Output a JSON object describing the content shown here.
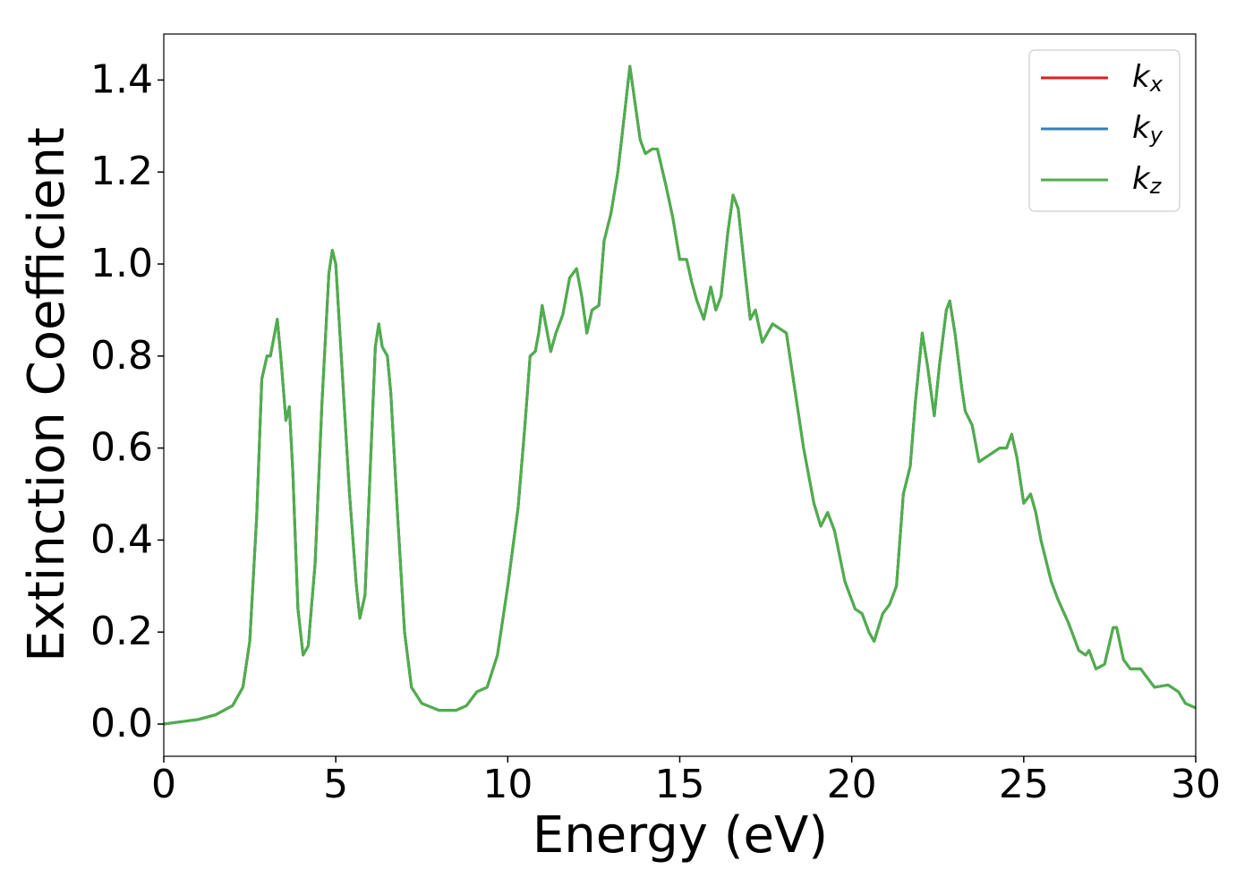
{
  "chart_data": {
    "type": "line",
    "xlabel": "Energy (eV)",
    "ylabel": "Extinction Coefficient",
    "xlim": [
      0,
      30
    ],
    "ylim": [
      -0.07,
      1.5
    ],
    "xticks": [
      0,
      5,
      10,
      15,
      20,
      25,
      30
    ],
    "yticks": [
      {
        "value": 0,
        "label": "0.0"
      },
      0.2,
      0.4,
      0.6,
      0.8,
      {
        "value": 1,
        "label": "1.0"
      },
      1.2,
      1.4
    ],
    "grid": false,
    "legend": "upper right",
    "x": [
      0,
      0.5,
      1,
      1.5,
      2,
      2.3,
      2.5,
      2.7,
      2.85,
      3.0,
      3.1,
      3.2,
      3.3,
      3.4,
      3.55,
      3.65,
      3.75,
      3.9,
      4.05,
      4.2,
      4.4,
      4.6,
      4.8,
      4.9,
      5.0,
      5.2,
      5.4,
      5.6,
      5.7,
      5.85,
      6.0,
      6.15,
      6.25,
      6.35,
      6.5,
      6.6,
      6.8,
      7.0,
      7.2,
      7.5,
      8.0,
      8.5,
      8.8,
      9.1,
      9.4,
      9.7,
      10.0,
      10.3,
      10.5,
      10.65,
      10.8,
      10.9,
      11.0,
      11.1,
      11.25,
      11.4,
      11.6,
      11.8,
      12.0,
      12.15,
      12.3,
      12.45,
      12.65,
      12.8,
      13.0,
      13.2,
      13.4,
      13.55,
      13.7,
      13.85,
      14.0,
      14.2,
      14.35,
      14.6,
      14.8,
      15.0,
      15.2,
      15.35,
      15.5,
      15.7,
      15.9,
      16.05,
      16.2,
      16.4,
      16.55,
      16.7,
      16.9,
      17.05,
      17.2,
      17.4,
      17.55,
      17.7,
      17.9,
      18.1,
      18.3,
      18.6,
      18.9,
      19.1,
      19.3,
      19.5,
      19.8,
      20.1,
      20.3,
      20.5,
      20.65,
      20.9,
      21.1,
      21.3,
      21.5,
      21.7,
      21.85,
      22.05,
      22.2,
      22.4,
      22.55,
      22.75,
      22.85,
      23.0,
      23.2,
      23.3,
      23.5,
      23.7,
      23.9,
      24.1,
      24.3,
      24.5,
      24.65,
      24.8,
      25.0,
      25.2,
      25.35,
      25.5,
      25.8,
      26.0,
      26.3,
      26.6,
      26.8,
      26.9,
      27.1,
      27.35,
      27.6,
      27.7,
      27.9,
      28.1,
      28.4,
      28.6,
      28.8,
      29.2,
      29.5,
      29.7,
      30.0
    ],
    "series": [
      {
        "name": "kx",
        "color": "#e41a1c",
        "values": [
          0.0,
          0.005,
          0.01,
          0.02,
          0.04,
          0.08,
          0.18,
          0.45,
          0.75,
          0.8,
          0.8,
          0.84,
          0.88,
          0.8,
          0.66,
          0.69,
          0.55,
          0.25,
          0.15,
          0.17,
          0.35,
          0.7,
          0.98,
          1.03,
          1.0,
          0.75,
          0.5,
          0.3,
          0.23,
          0.28,
          0.55,
          0.82,
          0.87,
          0.82,
          0.8,
          0.72,
          0.45,
          0.2,
          0.08,
          0.045,
          0.03,
          0.03,
          0.04,
          0.07,
          0.08,
          0.15,
          0.3,
          0.47,
          0.65,
          0.8,
          0.81,
          0.85,
          0.91,
          0.87,
          0.81,
          0.85,
          0.89,
          0.97,
          0.99,
          0.93,
          0.85,
          0.9,
          0.91,
          1.05,
          1.11,
          1.2,
          1.33,
          1.43,
          1.35,
          1.27,
          1.24,
          1.25,
          1.25,
          1.17,
          1.1,
          1.01,
          1.01,
          0.96,
          0.92,
          0.88,
          0.95,
          0.9,
          0.93,
          1.07,
          1.15,
          1.12,
          0.98,
          0.88,
          0.9,
          0.83,
          0.85,
          0.87,
          0.86,
          0.85,
          0.75,
          0.6,
          0.48,
          0.43,
          0.46,
          0.42,
          0.31,
          0.25,
          0.24,
          0.2,
          0.18,
          0.24,
          0.26,
          0.3,
          0.5,
          0.56,
          0.7,
          0.85,
          0.78,
          0.67,
          0.78,
          0.9,
          0.92,
          0.85,
          0.73,
          0.68,
          0.65,
          0.57,
          0.58,
          0.59,
          0.6,
          0.6,
          0.63,
          0.58,
          0.48,
          0.5,
          0.46,
          0.4,
          0.31,
          0.27,
          0.22,
          0.16,
          0.15,
          0.16,
          0.12,
          0.13,
          0.21,
          0.21,
          0.14,
          0.12,
          0.12,
          0.1,
          0.08,
          0.085,
          0.07,
          0.045,
          0.035
        ]
      },
      {
        "name": "ky",
        "color": "#377eb8",
        "values": [
          0.0,
          0.005,
          0.01,
          0.02,
          0.04,
          0.08,
          0.18,
          0.45,
          0.75,
          0.8,
          0.8,
          0.84,
          0.88,
          0.8,
          0.66,
          0.69,
          0.55,
          0.25,
          0.15,
          0.17,
          0.35,
          0.7,
          0.98,
          1.03,
          1.0,
          0.75,
          0.5,
          0.3,
          0.23,
          0.28,
          0.55,
          0.82,
          0.87,
          0.82,
          0.8,
          0.72,
          0.45,
          0.2,
          0.08,
          0.045,
          0.03,
          0.03,
          0.04,
          0.07,
          0.08,
          0.15,
          0.3,
          0.47,
          0.65,
          0.8,
          0.81,
          0.85,
          0.91,
          0.87,
          0.81,
          0.85,
          0.89,
          0.97,
          0.99,
          0.93,
          0.85,
          0.9,
          0.91,
          1.05,
          1.11,
          1.2,
          1.33,
          1.43,
          1.35,
          1.27,
          1.24,
          1.25,
          1.25,
          1.17,
          1.1,
          1.01,
          1.01,
          0.96,
          0.92,
          0.88,
          0.95,
          0.9,
          0.93,
          1.07,
          1.15,
          1.12,
          0.98,
          0.88,
          0.9,
          0.83,
          0.85,
          0.87,
          0.86,
          0.85,
          0.75,
          0.6,
          0.48,
          0.43,
          0.46,
          0.42,
          0.31,
          0.25,
          0.24,
          0.2,
          0.18,
          0.24,
          0.26,
          0.3,
          0.5,
          0.56,
          0.7,
          0.85,
          0.78,
          0.67,
          0.78,
          0.9,
          0.92,
          0.85,
          0.73,
          0.68,
          0.65,
          0.57,
          0.58,
          0.59,
          0.6,
          0.6,
          0.63,
          0.58,
          0.48,
          0.5,
          0.46,
          0.4,
          0.31,
          0.27,
          0.22,
          0.16,
          0.15,
          0.16,
          0.12,
          0.13,
          0.21,
          0.21,
          0.14,
          0.12,
          0.12,
          0.1,
          0.08,
          0.085,
          0.07,
          0.045,
          0.035
        ]
      },
      {
        "name": "kz",
        "color": "#4daf4a",
        "values": [
          0.0,
          0.005,
          0.01,
          0.02,
          0.04,
          0.08,
          0.18,
          0.45,
          0.75,
          0.8,
          0.8,
          0.84,
          0.88,
          0.8,
          0.66,
          0.69,
          0.55,
          0.25,
          0.15,
          0.17,
          0.35,
          0.7,
          0.98,
          1.03,
          1.0,
          0.75,
          0.5,
          0.3,
          0.23,
          0.28,
          0.55,
          0.82,
          0.87,
          0.82,
          0.8,
          0.72,
          0.45,
          0.2,
          0.08,
          0.045,
          0.03,
          0.03,
          0.04,
          0.07,
          0.08,
          0.15,
          0.3,
          0.47,
          0.65,
          0.8,
          0.81,
          0.85,
          0.91,
          0.87,
          0.81,
          0.85,
          0.89,
          0.97,
          0.99,
          0.93,
          0.85,
          0.9,
          0.91,
          1.05,
          1.11,
          1.2,
          1.33,
          1.43,
          1.35,
          1.27,
          1.24,
          1.25,
          1.25,
          1.17,
          1.1,
          1.01,
          1.01,
          0.96,
          0.92,
          0.88,
          0.95,
          0.9,
          0.93,
          1.07,
          1.15,
          1.12,
          0.98,
          0.88,
          0.9,
          0.83,
          0.85,
          0.87,
          0.86,
          0.85,
          0.75,
          0.6,
          0.48,
          0.43,
          0.46,
          0.42,
          0.31,
          0.25,
          0.24,
          0.2,
          0.18,
          0.24,
          0.26,
          0.3,
          0.5,
          0.56,
          0.7,
          0.85,
          0.78,
          0.67,
          0.78,
          0.9,
          0.92,
          0.85,
          0.73,
          0.68,
          0.65,
          0.57,
          0.58,
          0.59,
          0.6,
          0.6,
          0.63,
          0.58,
          0.48,
          0.5,
          0.46,
          0.4,
          0.31,
          0.27,
          0.22,
          0.16,
          0.15,
          0.16,
          0.12,
          0.13,
          0.21,
          0.21,
          0.14,
          0.12,
          0.12,
          0.1,
          0.08,
          0.085,
          0.07,
          0.045,
          0.035
        ]
      }
    ]
  }
}
